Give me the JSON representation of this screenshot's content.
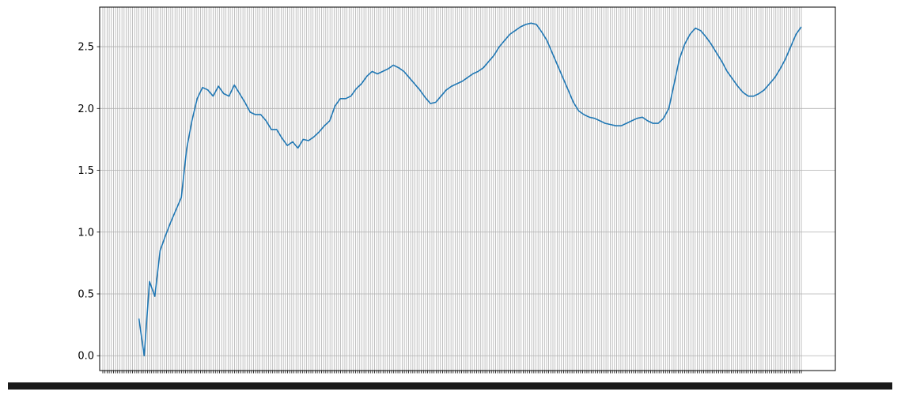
{
  "chart_data": {
    "type": "line",
    "title": "",
    "xlabel": "",
    "ylabel": "",
    "ylim": [
      -0.12,
      2.82
    ],
    "yticks": [
      0.0,
      0.5,
      1.0,
      1.5,
      2.0,
      2.5
    ],
    "ytick_labels": [
      "0.0",
      "0.5",
      "1.0",
      "1.5",
      "2.0",
      "2.5"
    ],
    "x_tick_count": 330,
    "x_tick_note": "dense, overlapping date tick labels (illegible)",
    "grid": true,
    "line_color": "#1f77b4",
    "series": [
      {
        "x_start_index": 17,
        "values": [
          0.3,
          0.0,
          0.6,
          0.48,
          0.85,
          0.97,
          1.08,
          1.18,
          1.28,
          1.67,
          1.9,
          2.08,
          2.17,
          2.15,
          2.1,
          2.18,
          2.12,
          2.1,
          2.19,
          2.12,
          2.05,
          1.97,
          1.95,
          1.95,
          1.9,
          1.83,
          1.83,
          1.76,
          1.7,
          1.73,
          1.68,
          1.75,
          1.74,
          1.77,
          1.81,
          1.86,
          1.9,
          2.02,
          2.08,
          2.08,
          2.1,
          2.16,
          2.2,
          2.26,
          2.3,
          2.28,
          2.3,
          2.32,
          2.35,
          2.33,
          2.3,
          2.25,
          2.2,
          2.15,
          2.09,
          2.04,
          2.05,
          2.1,
          2.15,
          2.18,
          2.2,
          2.22,
          2.25,
          2.28,
          2.3,
          2.33,
          2.38,
          2.43,
          2.5,
          2.55,
          2.6,
          2.63,
          2.66,
          2.68,
          2.69,
          2.68,
          2.62,
          2.55,
          2.45,
          2.35,
          2.25,
          2.15,
          2.05,
          1.98,
          1.95,
          1.93,
          1.92,
          1.9,
          1.88,
          1.87,
          1.86,
          1.86,
          1.88,
          1.9,
          1.92,
          1.93,
          1.9,
          1.88,
          1.88,
          1.92,
          2.0,
          2.2,
          2.4,
          2.52,
          2.6,
          2.65,
          2.63,
          2.58,
          2.52,
          2.45,
          2.38,
          2.3,
          2.24,
          2.18,
          2.13,
          2.1,
          2.1,
          2.12,
          2.15,
          2.2,
          2.25,
          2.32,
          2.4,
          2.5,
          2.6,
          2.66
        ]
      }
    ]
  }
}
